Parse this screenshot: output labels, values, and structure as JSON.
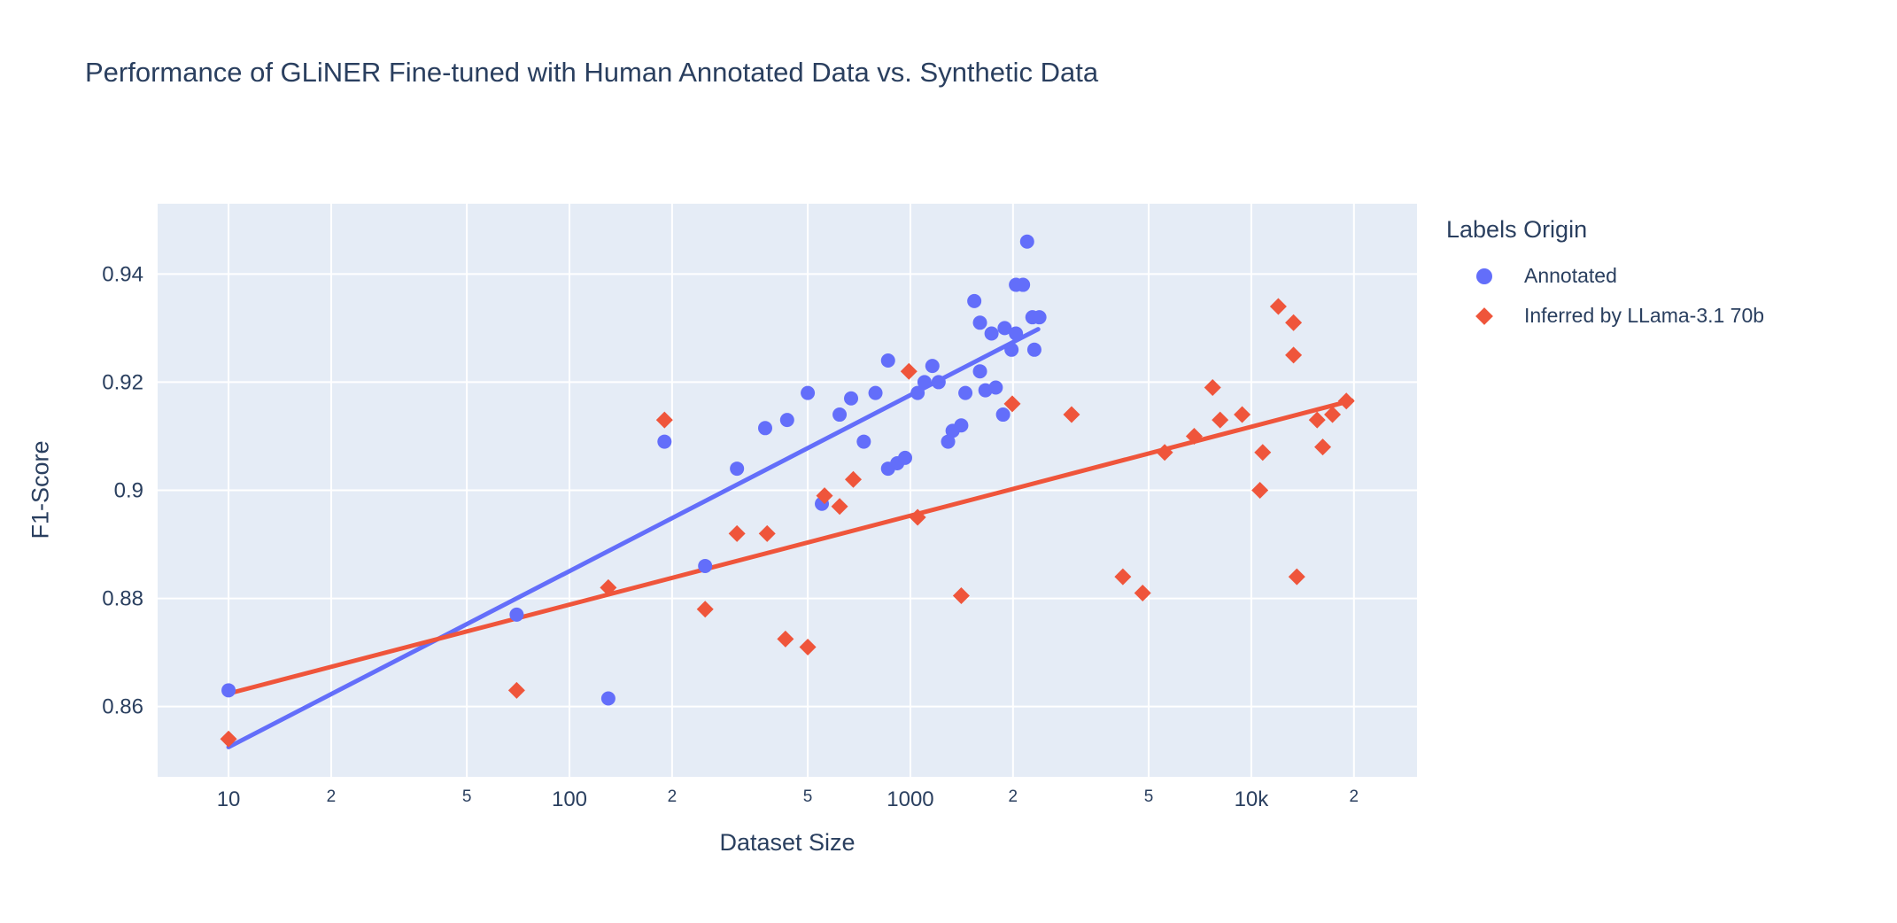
{
  "title": "Performance of GLiNER Fine-tuned with Human Annotated Data vs. Synthetic Data",
  "chart_data": {
    "type": "scatter",
    "title": "Performance of GLiNER Fine-tuned with Human Annotated Data vs. Synthetic Data",
    "xlabel": "Dataset Size",
    "ylabel": "F1-Score",
    "x_scale": "log",
    "x_domain_log10": [
      0.792,
      4.486
    ],
    "ylim": [
      0.847,
      0.953
    ],
    "grid": true,
    "colors": {
      "plot_background": "#E5ECF6",
      "gridline": "#FFFFFF",
      "text": "#2a3f5f",
      "annotated": "#636EFA",
      "inferred": "#EF553B"
    },
    "x_ticks": [
      {
        "value": 10,
        "label": "10",
        "major": true
      },
      {
        "value": 20,
        "label": "2",
        "major": false
      },
      {
        "value": 50,
        "label": "5",
        "major": false
      },
      {
        "value": 100,
        "label": "100",
        "major": true
      },
      {
        "value": 200,
        "label": "2",
        "major": false
      },
      {
        "value": 500,
        "label": "5",
        "major": false
      },
      {
        "value": 1000,
        "label": "1000",
        "major": true
      },
      {
        "value": 2000,
        "label": "2",
        "major": false
      },
      {
        "value": 5000,
        "label": "5",
        "major": false
      },
      {
        "value": 10000,
        "label": "10k",
        "major": true
      },
      {
        "value": 20000,
        "label": "2",
        "major": false
      }
    ],
    "y_ticks": [
      {
        "value": 0.86,
        "label": "0.86"
      },
      {
        "value": 0.88,
        "label": "0.88"
      },
      {
        "value": 0.9,
        "label": "0.9"
      },
      {
        "value": 0.92,
        "label": "0.92"
      },
      {
        "value": 0.94,
        "label": "0.94"
      }
    ],
    "legend": {
      "title": "Labels Origin",
      "position": "right",
      "items": [
        {
          "label": "Annotated",
          "marker": "circle",
          "color": "#636EFA"
        },
        {
          "label": "Inferred by LLama-3.1 70b",
          "marker": "diamond",
          "color": "#EF553B"
        }
      ]
    },
    "series": [
      {
        "name": "Annotated",
        "marker": "circle",
        "color": "#636EFA",
        "points": [
          [
            10,
            0.863
          ],
          [
            70,
            0.877
          ],
          [
            130,
            0.8615
          ],
          [
            190,
            0.909
          ],
          [
            250,
            0.886
          ],
          [
            310,
            0.904
          ],
          [
            375,
            0.9115
          ],
          [
            435,
            0.913
          ],
          [
            500,
            0.918
          ],
          [
            550,
            0.8975
          ],
          [
            620,
            0.914
          ],
          [
            670,
            0.917
          ],
          [
            730,
            0.909
          ],
          [
            790,
            0.918
          ],
          [
            860,
            0.904
          ],
          [
            915,
            0.905
          ],
          [
            965,
            0.906
          ],
          [
            860,
            0.924
          ],
          [
            1050,
            0.918
          ],
          [
            1100,
            0.92
          ],
          [
            1160,
            0.923
          ],
          [
            1210,
            0.92
          ],
          [
            1290,
            0.909
          ],
          [
            1330,
            0.911
          ],
          [
            1410,
            0.912
          ],
          [
            1450,
            0.918
          ],
          [
            1540,
            0.935
          ],
          [
            1600,
            0.931
          ],
          [
            1600,
            0.922
          ],
          [
            1660,
            0.9185
          ],
          [
            1780,
            0.919
          ],
          [
            1730,
            0.929
          ],
          [
            1870,
            0.914
          ],
          [
            1890,
            0.93
          ],
          [
            1980,
            0.926
          ],
          [
            2040,
            0.929
          ],
          [
            2040,
            0.938
          ],
          [
            2140,
            0.938
          ],
          [
            2200,
            0.946
          ],
          [
            2280,
            0.932
          ],
          [
            2310,
            0.926
          ],
          [
            2390,
            0.932
          ]
        ],
        "trend_line": [
          [
            10,
            0.8525
          ],
          [
            2370,
            0.9298
          ]
        ]
      },
      {
        "name": "Inferred by LLama-3.1 70b",
        "marker": "diamond",
        "color": "#EF553B",
        "points": [
          [
            10,
            0.854
          ],
          [
            70,
            0.863
          ],
          [
            130,
            0.882
          ],
          [
            190,
            0.913
          ],
          [
            250,
            0.878
          ],
          [
            310,
            0.892
          ],
          [
            380,
            0.892
          ],
          [
            430,
            0.8725
          ],
          [
            500,
            0.871
          ],
          [
            560,
            0.899
          ],
          [
            620,
            0.897
          ],
          [
            680,
            0.902
          ],
          [
            990,
            0.922
          ],
          [
            1050,
            0.895
          ],
          [
            1410,
            0.8805
          ],
          [
            1990,
            0.916
          ],
          [
            2970,
            0.914
          ],
          [
            4200,
            0.884
          ],
          [
            4800,
            0.881
          ],
          [
            5570,
            0.907
          ],
          [
            6800,
            0.91
          ],
          [
            7700,
            0.919
          ],
          [
            8100,
            0.913
          ],
          [
            9400,
            0.914
          ],
          [
            10600,
            0.9
          ],
          [
            10800,
            0.907
          ],
          [
            12000,
            0.934
          ],
          [
            13300,
            0.931
          ],
          [
            13300,
            0.925
          ],
          [
            13600,
            0.884
          ],
          [
            15600,
            0.913
          ],
          [
            16200,
            0.908
          ],
          [
            17300,
            0.914
          ],
          [
            19000,
            0.9165
          ]
        ],
        "trend_line": [
          [
            10,
            0.8624
          ],
          [
            19700,
            0.9166
          ]
        ]
      }
    ]
  }
}
